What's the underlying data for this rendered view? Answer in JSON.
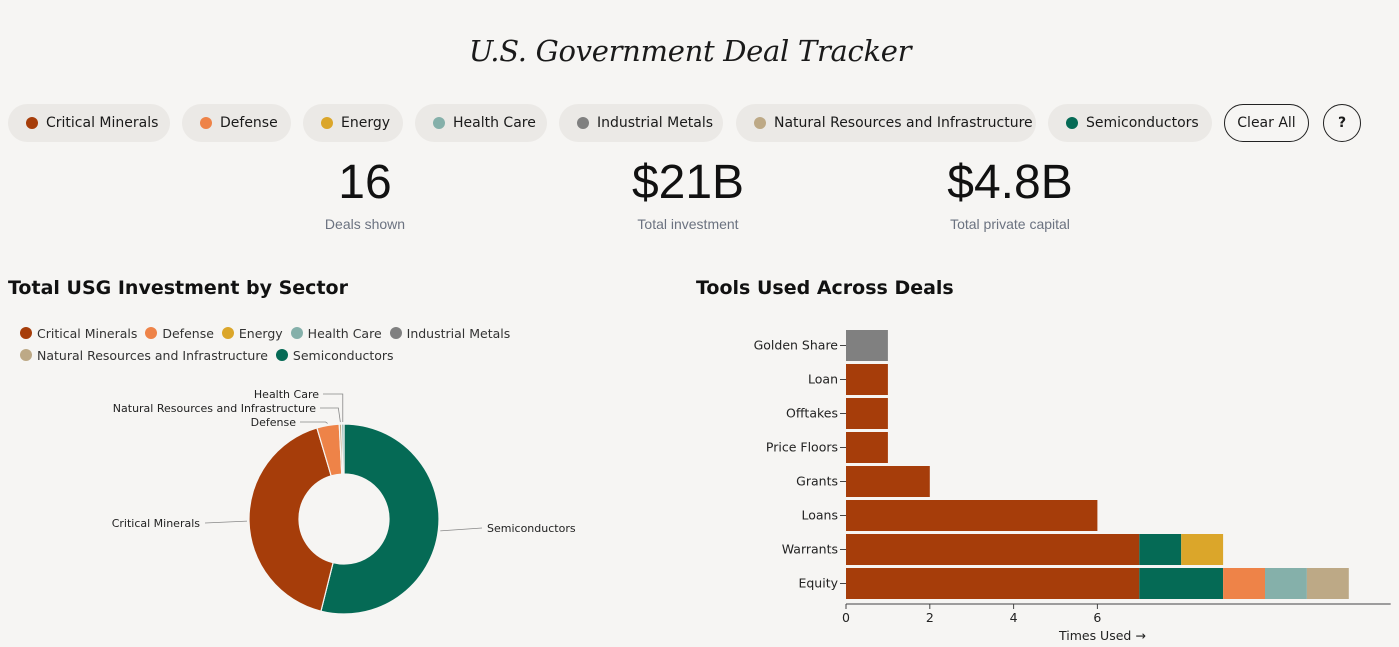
{
  "title": "U.S. Government Deal Tracker",
  "filters": [
    {
      "label": "Critical Minerals",
      "color": "#a63d0a"
    },
    {
      "label": "Defense",
      "color": "#ee8348"
    },
    {
      "label": "Energy",
      "color": "#dba62a"
    },
    {
      "label": "Health Care",
      "color": "#85b0aa"
    },
    {
      "label": "Industrial Metals",
      "color": "#808080"
    },
    {
      "label": "Natural Resources and Infrastructure",
      "color": "#bda986"
    },
    {
      "label": "Semiconductors",
      "color": "#056a55"
    }
  ],
  "actions": {
    "clear_label": "Clear All",
    "help_label": "?"
  },
  "stats": [
    {
      "value": "16",
      "label": "Deals shown"
    },
    {
      "value": "$21B",
      "label": "Total investment"
    },
    {
      "value": "$4.8B",
      "label": "Total private capital"
    }
  ],
  "sector_chart": {
    "title": "Total USG Investment by Sector"
  },
  "tools_chart": {
    "title": "Tools Used Across Deals"
  },
  "chart_data": [
    {
      "type": "pie",
      "title": "Total USG Investment by Sector",
      "donut": true,
      "legend": [
        "Critical Minerals",
        "Defense",
        "Energy",
        "Health Care",
        "Industrial Metals",
        "Natural Resources and Infrastructure",
        "Semiconductors"
      ],
      "legend_colors": [
        "#a63d0a",
        "#ee8348",
        "#dba62a",
        "#85b0aa",
        "#808080",
        "#bda986",
        "#056a55"
      ],
      "slices": [
        {
          "label": "Semiconductors",
          "value": 53.9,
          "color": "#056a55"
        },
        {
          "label": "Critical Minerals",
          "value": 41.5,
          "color": "#a63d0a"
        },
        {
          "label": "Defense",
          "value": 3.8,
          "color": "#ee8348"
        },
        {
          "label": "Natural Resources and Infrastructure",
          "value": 0.4,
          "color": "#bda986"
        },
        {
          "label": "Health Care",
          "value": 0.4,
          "color": "#85b0aa"
        }
      ],
      "annotated": [
        "Health Care",
        "Natural Resources and Infrastructure",
        "Defense",
        "Critical Minerals",
        "Semiconductors"
      ]
    },
    {
      "type": "bar",
      "orientation": "horizontal",
      "stacked": true,
      "title": "Tools Used Across Deals",
      "xlabel": "Times Used →",
      "xlim": [
        0,
        13
      ],
      "xticks": [
        "0",
        "2",
        "4",
        "6"
      ],
      "categories": [
        "Golden Share",
        "Loan",
        "Offtakes",
        "Price Floors",
        "Grants",
        "Loans",
        "Warrants",
        "Equity"
      ],
      "series": [
        {
          "name": "Industrial Metals",
          "color": "#808080",
          "values": [
            1,
            0,
            0,
            0,
            0,
            0,
            0,
            0
          ]
        },
        {
          "name": "Critical Minerals",
          "color": "#a63d0a",
          "values": [
            0,
            1,
            1,
            1,
            2,
            6,
            7,
            7
          ]
        },
        {
          "name": "Semiconductors",
          "color": "#056a55",
          "values": [
            0,
            0,
            0,
            0,
            0,
            0,
            1,
            2
          ]
        },
        {
          "name": "Energy",
          "color": "#dba62a",
          "values": [
            0,
            0,
            0,
            0,
            0,
            0,
            1,
            0
          ]
        },
        {
          "name": "Defense",
          "color": "#ee8348",
          "values": [
            0,
            0,
            0,
            0,
            0,
            0,
            0,
            1
          ]
        },
        {
          "name": "Health Care",
          "color": "#85b0aa",
          "values": [
            0,
            0,
            0,
            0,
            0,
            0,
            0,
            1
          ]
        },
        {
          "name": "Natural Resources and Infrastructure",
          "color": "#bda986",
          "values": [
            0,
            0,
            0,
            0,
            0,
            0,
            0,
            1
          ]
        }
      ]
    }
  ]
}
